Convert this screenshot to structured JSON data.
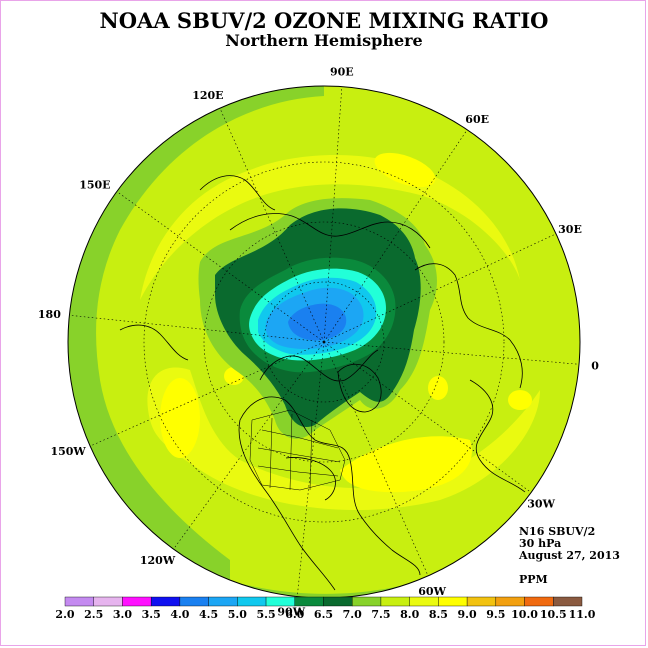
{
  "header": {
    "title": "NOAA SBUV/2 OZONE MIXING RATIO",
    "subtitle": "Northern Hemisphere"
  },
  "map": {
    "longitude_labels": [
      "90E",
      "60E",
      "30E",
      "0",
      "30W",
      "60W",
      "90W",
      "120W",
      "150W",
      "180",
      "150E",
      "120E"
    ],
    "level_colors": {
      "6.0-6.5": "#0a8a3c",
      "6.5-7.0": "#0a6a2e",
      "7.0-7.5": "#88d22a",
      "7.5-8.0": "#c8ef10",
      "8.0-8.5": "#eafa10",
      "8.5-9.0": "#ffff00",
      "5.5-6.0": "#22ffd8",
      "5.0-5.5": "#10c8ee",
      "4.5-5.0": "#1ca6f4",
      "4.0-4.5": "#1a80f0"
    }
  },
  "info": {
    "instrument": "N16 SBUV/2",
    "level": "30 hPa",
    "date": "August 27, 2013",
    "units": "PPM"
  },
  "colorbar": {
    "ticks": [
      "2.0",
      "2.5",
      "3.0",
      "3.5",
      "4.0",
      "4.5",
      "5.0",
      "5.5",
      "6.0",
      "6.5",
      "7.0",
      "7.5",
      "8.0",
      "8.5",
      "9.0",
      "9.5",
      "10.0",
      "10.5",
      "11.0"
    ],
    "colors": [
      "#c48af0",
      "#e6b4ee",
      "#ff10ff",
      "#1010f0",
      "#1a80f0",
      "#1ca6f4",
      "#10c8ee",
      "#22ffd8",
      "#0a8a3c",
      "#0a6a2e",
      "#88d22a",
      "#c8ef10",
      "#eafa10",
      "#ffff00",
      "#f2c210",
      "#f2a010",
      "#f06a10",
      "#f00010",
      "#8a5a40"
    ]
  }
}
